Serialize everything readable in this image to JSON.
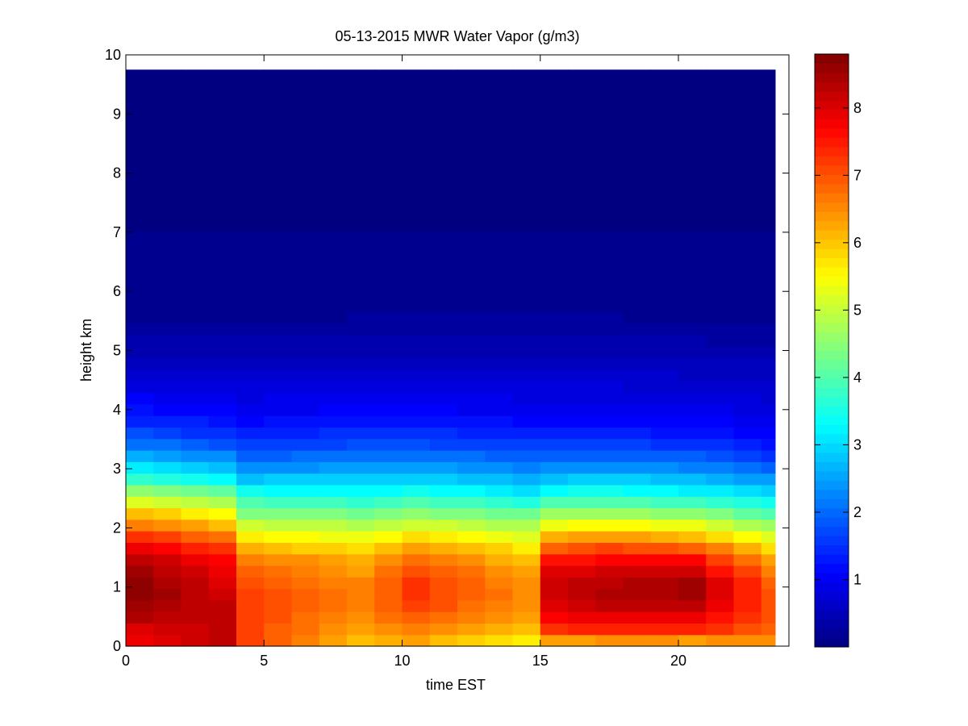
{
  "chart_data": {
    "type": "heatmap",
    "title": "05-13-2015 MWR Water Vapor (g/m3)",
    "xlabel": "time EST",
    "ylabel": "height km",
    "xlim": [
      0,
      24
    ],
    "ylim": [
      0,
      10
    ],
    "xticks": [
      "0",
      "5",
      "10",
      "15",
      "20"
    ],
    "yticks": [
      "0",
      "1",
      "2",
      "3",
      "4",
      "5",
      "6",
      "7",
      "8",
      "9",
      "10"
    ],
    "colorbar": {
      "colormap": "jet",
      "range": [
        0,
        8.8
      ],
      "ticks": [
        "1",
        "2",
        "3",
        "4",
        "5",
        "6",
        "7",
        "8"
      ]
    },
    "x": [
      0,
      1,
      2,
      3,
      4,
      5,
      6,
      7,
      8,
      9,
      10,
      11,
      12,
      13,
      14,
      15,
      16,
      17,
      18,
      19,
      20,
      21,
      22,
      23
    ],
    "heights": [
      0,
      0.1,
      0.25,
      0.5,
      0.75,
      1.0,
      1.25,
      1.5,
      1.75,
      2.0,
      2.25,
      2.5,
      2.75,
      3.0,
      3.25,
      3.5,
      3.75,
      4.0,
      4.25,
      4.5,
      4.75,
      5.0,
      5.5,
      6.0,
      7.0,
      8.0,
      10.0
    ],
    "profiles": {
      "t0": [
        7.3,
        7.8,
        7.9,
        8.4,
        8.6,
        8.7,
        8.5,
        8.2,
        7.7,
        6.8,
        6.0,
        5.0,
        4.0,
        3.2,
        2.5,
        1.9,
        1.5,
        1.2,
        1.0,
        0.8,
        0.6,
        0.45,
        0.2,
        0.12,
        0.07,
        0.04,
        0.03
      ],
      "t3": [
        8.2,
        8.3,
        8.2,
        8.2,
        8.2,
        8.0,
        7.9,
        7.6,
        7.1,
        6.2,
        5.5,
        4.6,
        3.6,
        2.8,
        2.2,
        1.6,
        1.3,
        1.05,
        0.85,
        0.7,
        0.55,
        0.42,
        0.2,
        0.12,
        0.07,
        0.04,
        0.03
      ],
      "t4": [
        6.9,
        7.1,
        7.1,
        7.1,
        7.2,
        7.0,
        6.9,
        6.6,
        5.9,
        5.2,
        4.4,
        3.8,
        3.0,
        2.4,
        1.9,
        1.5,
        1.2,
        1.0,
        0.85,
        0.7,
        0.55,
        0.42,
        0.2,
        0.12,
        0.07,
        0.04,
        0.03
      ],
      "t8": [
        5.6,
        6.1,
        6.3,
        6.5,
        6.6,
        6.6,
        6.4,
        6.1,
        5.6,
        5.0,
        4.3,
        3.6,
        3.0,
        2.5,
        2.0,
        1.6,
        1.3,
        1.05,
        0.9,
        0.75,
        0.6,
        0.45,
        0.22,
        0.12,
        0.07,
        0.04,
        0.03
      ],
      "t10": [
        5.8,
        6.3,
        6.6,
        6.9,
        7.2,
        7.3,
        7.1,
        6.7,
        6.1,
        5.3,
        4.5,
        3.8,
        3.1,
        2.5,
        2.0,
        1.6,
        1.3,
        1.05,
        0.9,
        0.75,
        0.6,
        0.45,
        0.22,
        0.12,
        0.07,
        0.04,
        0.03
      ],
      "t14": [
        5.4,
        5.6,
        6.0,
        6.3,
        6.5,
        6.5,
        6.3,
        6.0,
        5.5,
        4.9,
        4.2,
        3.4,
        2.8,
        2.3,
        1.9,
        1.5,
        1.2,
        1.0,
        0.85,
        0.7,
        0.58,
        0.45,
        0.25,
        0.12,
        0.07,
        0.04,
        0.03
      ],
      "t15": [
        5.5,
        6.3,
        7.2,
        7.7,
        8.0,
        8.2,
        8.0,
        7.5,
        6.6,
        5.6,
        4.6,
        3.7,
        3.0,
        2.4,
        1.9,
        1.5,
        1.2,
        1.0,
        0.85,
        0.7,
        0.58,
        0.45,
        0.22,
        0.12,
        0.07,
        0.04,
        0.03
      ],
      "t17": [
        5.6,
        6.5,
        7.4,
        7.9,
        8.3,
        8.4,
        8.1,
        7.6,
        6.8,
        5.7,
        4.7,
        3.8,
        3.1,
        2.4,
        1.9,
        1.5,
        1.2,
        1.0,
        0.85,
        0.7,
        0.58,
        0.45,
        0.22,
        0.12,
        0.07,
        0.04,
        0.03
      ],
      "t20": [
        5.6,
        6.4,
        7.3,
        7.9,
        8.4,
        8.6,
        8.2,
        7.6,
        6.5,
        5.5,
        4.5,
        3.6,
        2.9,
        2.3,
        1.8,
        1.4,
        1.1,
        0.95,
        0.8,
        0.65,
        0.55,
        0.42,
        0.2,
        0.12,
        0.07,
        0.04,
        0.03
      ],
      "t23": [
        6.2,
        6.5,
        6.9,
        7.0,
        7.0,
        6.9,
        6.6,
        6.2,
        5.6,
        4.8,
        4.0,
        3.3,
        2.6,
        2.0,
        1.5,
        1.2,
        1.0,
        0.85,
        0.7,
        0.6,
        0.5,
        0.4,
        0.2,
        0.12,
        0.07,
        0.04,
        0.03
      ]
    }
  }
}
